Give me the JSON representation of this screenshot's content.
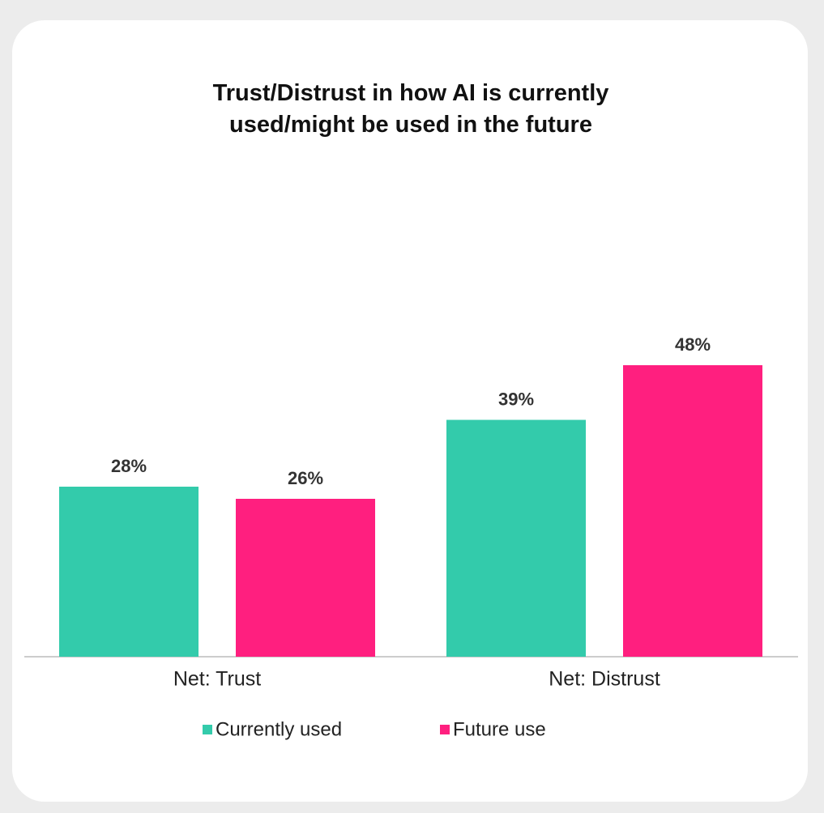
{
  "chart_data": {
    "type": "bar",
    "title": "Trust/Distrust in how AI is currently used/might be used in the future",
    "categories": [
      "Net: Trust",
      "Net: Distrust"
    ],
    "series": [
      {
        "name": "Currently used",
        "color": "#33cbab",
        "values": [
          28,
          39
        ],
        "value_labels": [
          "28%",
          "39%"
        ]
      },
      {
        "name": "Future use",
        "color": "#ff1f7f",
        "values": [
          26,
          48
        ],
        "value_labels": [
          "26%",
          "48%"
        ]
      }
    ]
  }
}
